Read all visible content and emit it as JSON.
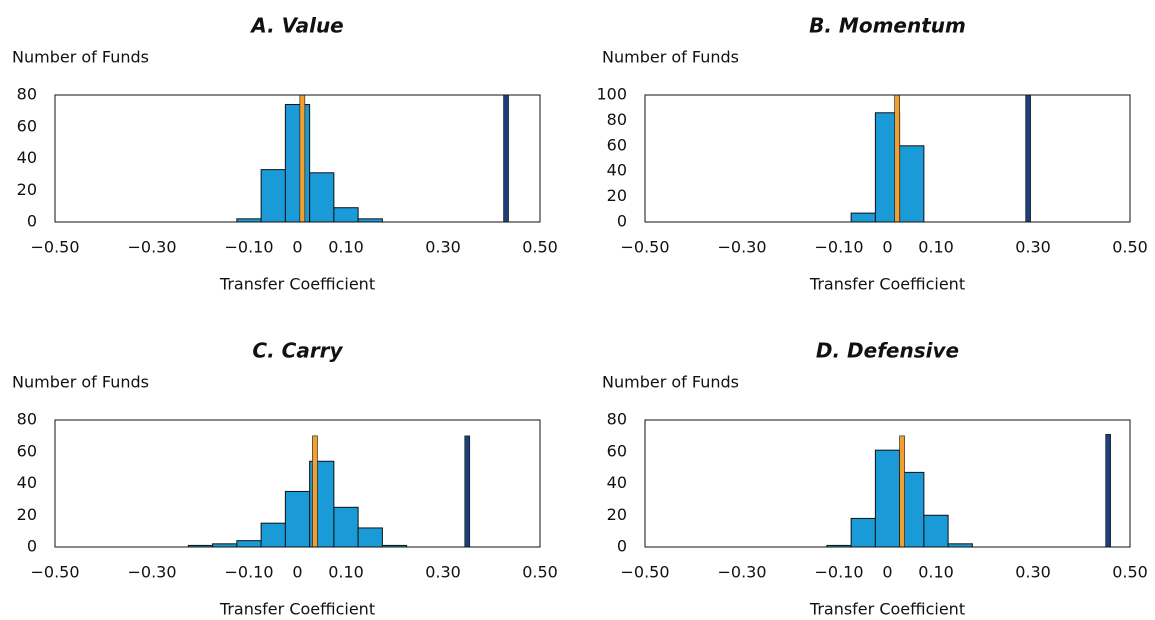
{
  "chart_data": [
    {
      "type": "histogram",
      "title": "A. Value",
      "ylabel": "Number of Funds",
      "xlabel": "Transfer Coefficient",
      "bins": [
        -0.125,
        -0.075,
        -0.025,
        0.025,
        0.075,
        0.125,
        0.175
      ],
      "counts": [
        2,
        33,
        74,
        31,
        9,
        2
      ],
      "color": "#1a9ad6",
      "lines": [
        {
          "x": 0.01,
          "value": 80,
          "color": "#f0a030"
        },
        {
          "x": 0.43,
          "value": 80,
          "color": "#1f3f7a"
        }
      ],
      "xlim": [
        -0.5,
        0.5
      ],
      "xticks": [
        {
          "value": -0.5,
          "label": "−0.50"
        },
        {
          "value": -0.3,
          "label": "−0.30"
        },
        {
          "value": -0.1,
          "label": "−0.10"
        },
        0,
        {
          "value": 0.1,
          "label": "0.10"
        },
        {
          "value": 0.3,
          "label": "0.30"
        },
        {
          "value": 0.5,
          "label": "0.50"
        }
      ],
      "ylim": [
        0,
        80
      ],
      "yticks": [
        0,
        20,
        40,
        60,
        80
      ]
    },
    {
      "type": "histogram",
      "title": "B. Momentum",
      "ylabel": "Number of Funds",
      "xlabel": "Transfer Coefficient",
      "bins": [
        -0.075,
        -0.025,
        0.025,
        0.075
      ],
      "counts": [
        7,
        86,
        60
      ],
      "color": "#1a9ad6",
      "lines": [
        {
          "x": 0.02,
          "value": 100,
          "color": "#f0a030"
        },
        {
          "x": 0.29,
          "value": 100,
          "color": "#1f3f7a"
        }
      ],
      "xlim": [
        -0.5,
        0.5
      ],
      "xticks": [
        {
          "value": -0.5,
          "label": "−0.50"
        },
        {
          "value": -0.3,
          "label": "−0.30"
        },
        {
          "value": -0.1,
          "label": "−0.10"
        },
        0,
        {
          "value": 0.1,
          "label": "0.10"
        },
        {
          "value": 0.3,
          "label": "0.30"
        },
        {
          "value": 0.5,
          "label": "0.50"
        }
      ],
      "ylim": [
        0,
        100
      ],
      "yticks": [
        0,
        20,
        40,
        60,
        80,
        100
      ]
    },
    {
      "type": "histogram",
      "title": "C. Carry",
      "ylabel": "Number of Funds",
      "xlabel": "Transfer Coefficient",
      "bins": [
        -0.225,
        -0.175,
        -0.125,
        -0.075,
        -0.025,
        0.025,
        0.075,
        0.125,
        0.175,
        0.225
      ],
      "counts": [
        1,
        2,
        4,
        15,
        35,
        54,
        25,
        12,
        1
      ],
      "color": "#1a9ad6",
      "lines": [
        {
          "x": 0.036,
          "value": 70,
          "color": "#f0a030"
        },
        {
          "x": 0.35,
          "value": 70,
          "color": "#1f3f7a"
        }
      ],
      "xlim": [
        -0.5,
        0.5
      ],
      "xticks": [
        {
          "value": -0.5,
          "label": "−0.50"
        },
        {
          "value": -0.3,
          "label": "−0.30"
        },
        {
          "value": -0.1,
          "label": "−0.10"
        },
        0,
        {
          "value": 0.1,
          "label": "0.10"
        },
        {
          "value": 0.3,
          "label": "0.30"
        },
        {
          "value": 0.5,
          "label": "0.50"
        }
      ],
      "ylim": [
        0,
        80
      ],
      "yticks": [
        0,
        20,
        40,
        60,
        80
      ]
    },
    {
      "type": "histogram",
      "title": "D. Defensive",
      "ylabel": "Number of Funds",
      "xlabel": "Transfer Coefficient",
      "bins": [
        -0.125,
        -0.075,
        -0.025,
        0.025,
        0.075,
        0.125,
        0.175
      ],
      "counts": [
        1,
        18,
        61,
        47,
        20,
        2
      ],
      "color": "#1a9ad6",
      "lines": [
        {
          "x": 0.03,
          "value": 70,
          "color": "#f0a030"
        },
        {
          "x": 0.455,
          "value": 71,
          "color": "#1f3f7a"
        }
      ],
      "xlim": [
        -0.5,
        0.5
      ],
      "xticks": [
        {
          "value": -0.5,
          "label": "−0.50"
        },
        {
          "value": -0.3,
          "label": "−0.30"
        },
        {
          "value": -0.1,
          "label": "−0.10"
        },
        0,
        {
          "value": 0.1,
          "label": "0.10"
        },
        {
          "value": 0.3,
          "label": "0.30"
        },
        {
          "value": 0.5,
          "label": "0.50"
        }
      ],
      "ylim": [
        0,
        80
      ],
      "yticks": [
        0,
        20,
        40,
        60,
        80
      ]
    }
  ]
}
